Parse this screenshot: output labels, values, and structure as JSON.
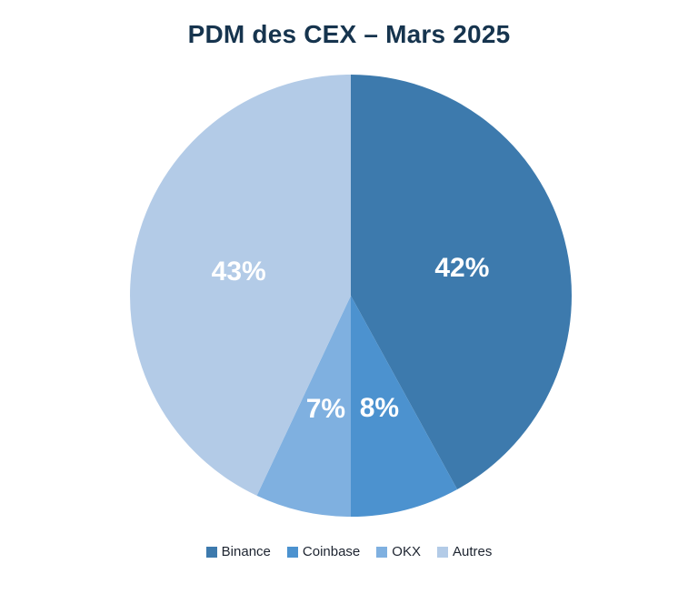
{
  "chart_data": {
    "type": "pie",
    "title": "PDM des CEX – Mars 2025",
    "labels": [
      "Binance",
      "Coinbase",
      "OKX",
      "Autres"
    ],
    "values": [
      42,
      8,
      7,
      43
    ],
    "value_labels": [
      "42%",
      "8%",
      "7%",
      "43%"
    ],
    "colors": [
      "#3d7aad",
      "#4c92cf",
      "#7fb0e0",
      "#b3cbe7"
    ],
    "label_color": "#ffffff",
    "start_angle_deg": 0,
    "direction": "clockwise",
    "legend_position": "bottom",
    "background": "#ffffff"
  }
}
